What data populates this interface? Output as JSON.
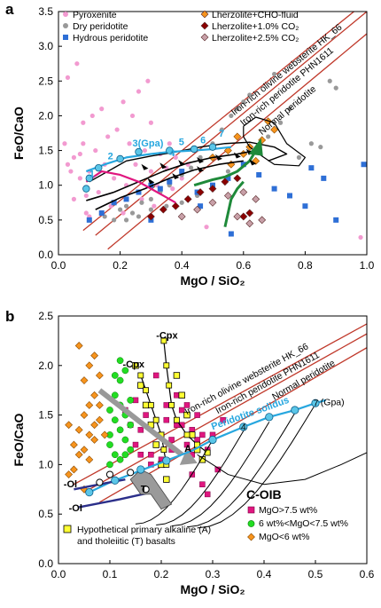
{
  "chart_data": [
    {
      "panel": "a",
      "type": "scatter",
      "xlabel": "MgO / SiO2",
      "ylabel": "FeO/CaO",
      "xlim": [
        0,
        1.0
      ],
      "ylim": [
        0,
        3.5
      ],
      "xticks": [
        "0.0",
        "0.2",
        "0.4",
        "0.6",
        "0.8",
        "1.0"
      ],
      "yticks": [
        "0.0",
        "0.5",
        "1.0",
        "1.5",
        "2.0",
        "2.5",
        "3.0",
        "3.5"
      ],
      "legend_position": "top",
      "legend": [
        "Pyroxenite",
        "Dry peridotite",
        "Hydrous peridotite",
        "Lherzolite+CHO-fluid",
        "Lherzolite+1.0% CO2",
        "Lherzolite+2.5% CO2"
      ],
      "reference_lines": [
        {
          "label": "Iron-rich olivine websterite HK_66",
          "from": [
            0.08,
            0.35
          ],
          "to": [
            1.0,
            3.65
          ]
        },
        {
          "label": "Iron-rich peridotite PHN1611",
          "from": [
            0.12,
            0.28
          ],
          "to": [
            1.0,
            3.5
          ]
        },
        {
          "label": "Normal peridotite",
          "from": [
            0.16,
            0.08
          ],
          "to": [
            1.0,
            3.18
          ]
        }
      ],
      "pressure_labels": [
        "1",
        "2",
        "3(Gpa)",
        "4",
        "5",
        "6",
        "7"
      ],
      "series": [
        {
          "name": "Pyroxenite",
          "color": "#f29ad0",
          "points": [
            [
              0.03,
              1.3
            ],
            [
              0.05,
              1.4
            ],
            [
              0.07,
              1.1
            ],
            [
              0.08,
              1.6
            ],
            [
              0.1,
              1.2
            ],
            [
              0.12,
              1.5
            ],
            [
              0.13,
              0.9
            ],
            [
              0.15,
              1.3
            ],
            [
              0.16,
              1.7
            ],
            [
              0.18,
              1.1
            ],
            [
              0.2,
              1.4
            ],
            [
              0.22,
              1.0
            ],
            [
              0.23,
              1.6
            ],
            [
              0.25,
              1.3
            ],
            [
              0.27,
              0.8
            ],
            [
              0.28,
              1.5
            ],
            [
              0.3,
              1.2
            ],
            [
              0.32,
              1.0
            ],
            [
              0.33,
              1.45
            ],
            [
              0.35,
              1.25
            ],
            [
              0.37,
              0.95
            ],
            [
              0.4,
              1.1
            ],
            [
              0.42,
              1.3
            ],
            [
              0.45,
              0.9
            ],
            [
              0.05,
              0.8
            ],
            [
              0.08,
              1.9
            ],
            [
              0.11,
              2.0
            ],
            [
              0.14,
              2.1
            ],
            [
              0.19,
              1.8
            ],
            [
              0.24,
              2.0
            ],
            [
              0.26,
              2.35
            ],
            [
              0.29,
              2.5
            ],
            [
              0.3,
              1.9
            ],
            [
              0.17,
              0.7
            ],
            [
              0.21,
              0.6
            ],
            [
              0.09,
              0.6
            ],
            [
              0.02,
              1.6
            ],
            [
              0.36,
              1.6
            ],
            [
              0.38,
              1.4
            ],
            [
              0.03,
              2.55
            ],
            [
              0.06,
              2.75
            ],
            [
              0.21,
              2.2
            ],
            [
              0.1,
              0.55
            ],
            [
              0.04,
              1.2
            ],
            [
              0.07,
              1.45
            ],
            [
              0.09,
              0.85
            ],
            [
              0.13,
              1.25
            ],
            [
              0.31,
              0.7
            ],
            [
              0.48,
              0.4
            ],
            [
              0.98,
              0.25
            ]
          ]
        },
        {
          "name": "Dry peridotite",
          "color": "#999999",
          "points": [
            [
              0.15,
              0.55
            ],
            [
              0.18,
              0.5
            ],
            [
              0.2,
              0.65
            ],
            [
              0.22,
              0.7
            ],
            [
              0.24,
              0.6
            ],
            [
              0.27,
              0.75
            ],
            [
              0.3,
              0.8
            ],
            [
              0.33,
              0.9
            ],
            [
              0.36,
              1.0
            ],
            [
              0.4,
              1.15
            ],
            [
              0.43,
              1.25
            ],
            [
              0.46,
              1.4
            ],
            [
              0.5,
              1.6
            ],
            [
              0.53,
              1.8
            ],
            [
              0.56,
              2.0
            ],
            [
              0.58,
              2.1
            ],
            [
              0.6,
              2.2
            ],
            [
              0.62,
              2.3
            ],
            [
              0.65,
              1.5
            ],
            [
              0.68,
              1.7
            ],
            [
              0.72,
              1.9
            ],
            [
              0.75,
              2.1
            ],
            [
              0.78,
              1.4
            ],
            [
              0.82,
              1.6
            ],
            [
              0.85,
              1.55
            ],
            [
              0.88,
              2.5
            ],
            [
              0.9,
              2.4
            ],
            [
              0.7,
              2.6
            ],
            [
              0.55,
              1.2
            ],
            [
              0.5,
              0.95
            ],
            [
              0.45,
              0.85
            ],
            [
              0.4,
              0.75
            ],
            [
              0.35,
              0.7
            ],
            [
              0.3,
              0.65
            ],
            [
              0.26,
              0.55
            ],
            [
              0.22,
              0.5
            ]
          ]
        },
        {
          "name": "Hydrous peridotite",
          "color": "#2e6fd6",
          "points": [
            [
              0.1,
              0.5
            ],
            [
              0.14,
              0.6
            ],
            [
              0.18,
              0.75
            ],
            [
              0.22,
              0.8
            ],
            [
              0.26,
              0.9
            ],
            [
              0.3,
              1.0
            ],
            [
              0.33,
              0.95
            ],
            [
              0.36,
              1.05
            ],
            [
              0.4,
              1.2
            ],
            [
              0.45,
              0.9
            ],
            [
              0.5,
              1.0
            ],
            [
              0.55,
              1.1
            ],
            [
              0.6,
              1.3
            ],
            [
              0.65,
              1.15
            ],
            [
              0.7,
              0.95
            ],
            [
              0.75,
              0.85
            ],
            [
              0.82,
              1.25
            ],
            [
              0.86,
              1.1
            ],
            [
              0.99,
              1.3
            ],
            [
              0.9,
              0.5
            ],
            [
              0.8,
              0.7
            ],
            [
              0.46,
              0.7
            ],
            [
              0.3,
              0.5
            ],
            [
              0.56,
              0.3
            ]
          ]
        },
        {
          "name": "Lherzolite+CHO-fluid",
          "color": "#f7941d",
          "points": [
            [
              0.5,
              1.4
            ],
            [
              0.55,
              1.5
            ],
            [
              0.58,
              1.7
            ],
            [
              0.62,
              1.55
            ],
            [
              0.66,
              1.65
            ],
            [
              0.68,
              1.92
            ],
            [
              0.7,
              1.8
            ],
            [
              0.64,
              1.35
            ],
            [
              0.6,
              1.45
            ],
            [
              0.56,
              1.3
            ]
          ]
        },
        {
          "name": "Lherzolite+1.0% CO2",
          "color": "#8b0000",
          "points": [
            [
              0.3,
              0.55
            ],
            [
              0.34,
              0.65
            ],
            [
              0.38,
              0.7
            ],
            [
              0.42,
              0.8
            ],
            [
              0.46,
              0.9
            ],
            [
              0.5,
              0.95
            ],
            [
              0.54,
              1.05
            ],
            [
              0.58,
              1.1
            ],
            [
              0.6,
              0.55
            ],
            [
              0.62,
              0.6
            ]
          ]
        },
        {
          "name": "Lherzolite+2.5% CO2",
          "color": "#c8a0a8",
          "points": [
            [
              0.4,
              0.55
            ],
            [
              0.45,
              0.65
            ],
            [
              0.5,
              0.75
            ],
            [
              0.55,
              0.85
            ],
            [
              0.6,
              0.9
            ],
            [
              0.64,
              0.8
            ],
            [
              0.66,
              0.5
            ],
            [
              0.62,
              0.45
            ],
            [
              0.58,
              0.55
            ]
          ]
        }
      ]
    },
    {
      "panel": "b",
      "type": "scatter",
      "xlabel": "MgO / SiO2",
      "ylabel": "FeO/CaO",
      "xlim": [
        0,
        0.6
      ],
      "ylim": [
        0,
        2.5
      ],
      "xticks": [
        "0.0",
        "0.1",
        "0.2",
        "0.3",
        "0.4",
        "0.5",
        "0.6"
      ],
      "yticks": [
        "0.0",
        "0.5",
        "1.0",
        "1.5",
        "2.0",
        "2.5"
      ],
      "legend_position": "bottom-right",
      "legend_title": "C-OIB",
      "legend": [
        "MgO>7.5 wt%",
        "6 wt%<MgO<7.5 wt%",
        "MgO<6 wt%"
      ],
      "annotations": [
        "-Cpx",
        "-Cpx",
        "-Ol",
        "-Ol",
        "A",
        "T",
        "Peridotite solidus",
        "(Gpa)",
        "Hypothetical primary alkaline (A)",
        "and tholeiitic (T) basalts"
      ],
      "reference_lines": [
        {
          "label": "Iron-rich olivine websterite HK_66",
          "from": [
            0.03,
            0.8
          ],
          "to": [
            0.6,
            2.42
          ]
        },
        {
          "label": "Iron-rich peridotite PHN1611",
          "from": [
            0.05,
            0.72
          ],
          "to": [
            0.6,
            2.32
          ]
        },
        {
          "label": "Normal peridotite",
          "from": [
            0.08,
            0.62
          ],
          "to": [
            0.6,
            2.18
          ]
        }
      ],
      "pressure_labels": [
        "4",
        "7"
      ],
      "series": [
        {
          "name": "MgO>7.5 wt%",
          "color": "#e0167f",
          "points": [
            [
              0.15,
              1.2
            ],
            [
              0.16,
              1.35
            ],
            [
              0.17,
              1.5
            ],
            [
              0.18,
              1.1
            ],
            [
              0.19,
              1.45
            ],
            [
              0.2,
              1.3
            ],
            [
              0.21,
              1.6
            ],
            [
              0.22,
              1.25
            ],
            [
              0.23,
              1.4
            ],
            [
              0.24,
              1.55
            ],
            [
              0.25,
              1.2
            ],
            [
              0.26,
              1.35
            ],
            [
              0.27,
              1.5
            ],
            [
              0.28,
              1.3
            ],
            [
              0.29,
              1.15
            ],
            [
              0.15,
              1.65
            ],
            [
              0.17,
              1.75
            ],
            [
              0.19,
              1.9
            ],
            [
              0.21,
              1.45
            ],
            [
              0.23,
              1.7
            ],
            [
              0.25,
              1.6
            ],
            [
              0.27,
              1.25
            ],
            [
              0.18,
              1.0
            ],
            [
              0.2,
              1.05
            ],
            [
              0.22,
              1.15
            ],
            [
              0.24,
              1.4
            ],
            [
              0.26,
              1.1
            ],
            [
              0.16,
              1.1
            ],
            [
              0.3,
              1.3
            ],
            [
              0.31,
              0.95
            ],
            [
              0.32,
              1.45
            ],
            [
              0.14,
              1.4
            ],
            [
              0.13,
              1.55
            ],
            [
              0.26,
              0.9
            ],
            [
              0.28,
              0.8
            ],
            [
              0.29,
              0.7
            ]
          ]
        },
        {
          "name": "6 wt%<MgO<7.5 wt%",
          "color": "#22dd22",
          "points": [
            [
              0.1,
              1.3
            ],
            [
              0.11,
              1.45
            ],
            [
              0.12,
              1.6
            ],
            [
              0.1,
              1.2
            ],
            [
              0.12,
              1.35
            ],
            [
              0.13,
              1.5
            ],
            [
              0.11,
              1.7
            ],
            [
              0.12,
              1.85
            ],
            [
              0.13,
              1.25
            ],
            [
              0.14,
              1.4
            ],
            [
              0.1,
              1.55
            ],
            [
              0.11,
              1.1
            ],
            [
              0.13,
              1.1
            ],
            [
              0.12,
              1.05
            ],
            [
              0.1,
              1.0
            ],
            [
              0.14,
              1.65
            ],
            [
              0.13,
              1.95
            ],
            [
              0.12,
              2.05
            ],
            [
              0.11,
              1.9
            ],
            [
              0.14,
              1.15
            ]
          ]
        },
        {
          "name": "MgO<6 wt%",
          "color": "#f7941d",
          "points": [
            [
              0.03,
              1.2
            ],
            [
              0.04,
              1.35
            ],
            [
              0.05,
              1.5
            ],
            [
              0.06,
              1.3
            ],
            [
              0.07,
              1.7
            ],
            [
              0.08,
              1.45
            ],
            [
              0.05,
              1.85
            ],
            [
              0.06,
              2.0
            ],
            [
              0.07,
              2.1
            ],
            [
              0.04,
              1.1
            ],
            [
              0.06,
              1.05
            ],
            [
              0.07,
              1.25
            ],
            [
              0.08,
              1.6
            ],
            [
              0.03,
              0.95
            ],
            [
              0.02,
              0.9
            ],
            [
              0.05,
              0.75
            ],
            [
              0.04,
              2.2
            ],
            [
              0.06,
              1.6
            ],
            [
              0.08,
              1.9
            ],
            [
              0.07,
              1.4
            ],
            [
              0.05,
              1.15
            ],
            [
              0.09,
              1.3
            ],
            [
              0.02,
              1.4
            ]
          ]
        },
        {
          "name": "Hypothetical primary alkaline (A) and tholeiitic (T) basalts",
          "color": "#ffff33",
          "points": [
            [
              0.15,
              2.0
            ],
            [
              0.16,
              1.8
            ],
            [
              0.17,
              1.6
            ],
            [
              0.18,
              1.4
            ],
            [
              0.19,
              1.2
            ],
            [
              0.2,
              1.0
            ],
            [
              0.21,
              0.85
            ],
            [
              0.23,
              1.9
            ],
            [
              0.24,
              1.7
            ],
            [
              0.25,
              1.5
            ],
            [
              0.26,
              1.3
            ],
            [
              0.27,
              1.15
            ],
            [
              0.28,
              1.05
            ]
          ]
        }
      ]
    }
  ]
}
